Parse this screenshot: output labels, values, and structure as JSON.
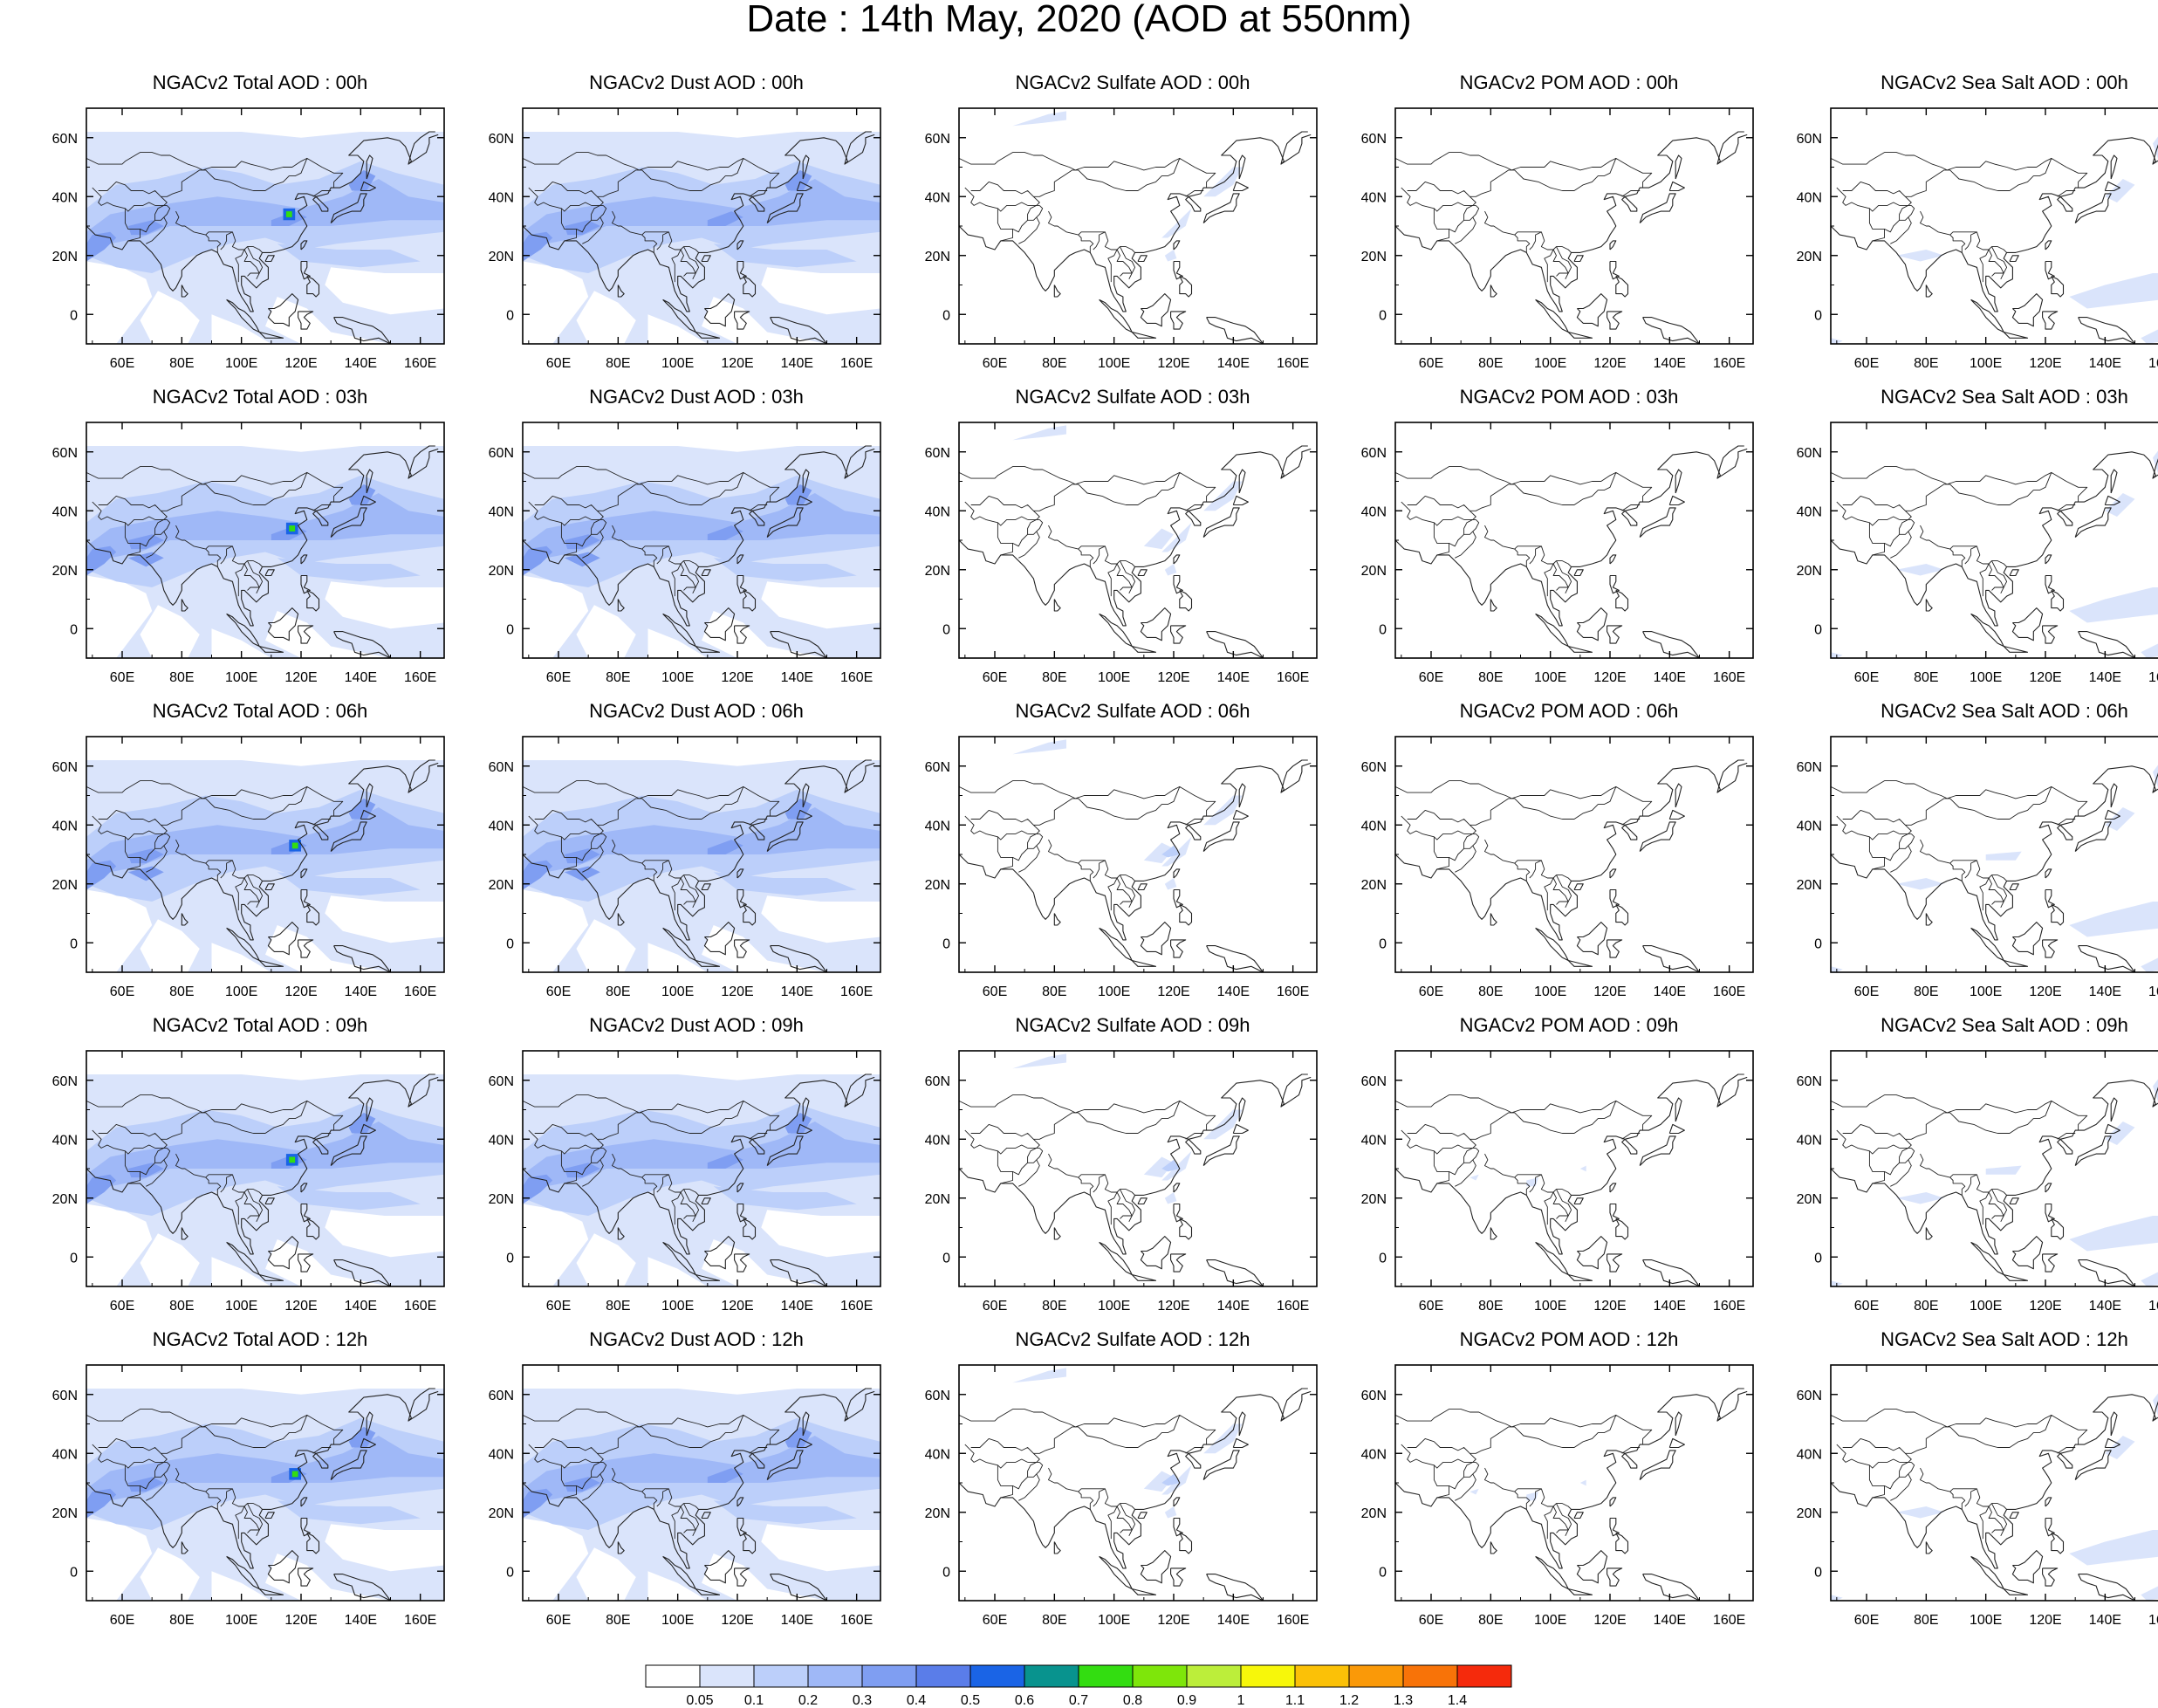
{
  "title": "Date : 14th May, 2020 (AOD at 550nm)",
  "panels": [
    [
      "NGACv2 Total AOD : 00h",
      "NGACv2 Dust AOD : 00h",
      "NGACv2 Sulfate AOD : 00h",
      "NGACv2 POM AOD : 00h",
      "NGACv2 Sea Salt AOD : 00h"
    ],
    [
      "NGACv2 Total AOD : 03h",
      "NGACv2 Dust AOD : 03h",
      "NGACv2 Sulfate AOD : 03h",
      "NGACv2 POM AOD : 03h",
      "NGACv2 Sea Salt AOD : 03h"
    ],
    [
      "NGACv2 Total AOD : 06h",
      "NGACv2 Dust AOD : 06h",
      "NGACv2 Sulfate AOD : 06h",
      "NGACv2 POM AOD : 06h",
      "NGACv2 Sea Salt AOD : 06h"
    ],
    [
      "NGACv2 Total AOD : 09h",
      "NGACv2 Dust AOD : 09h",
      "NGACv2 Sulfate AOD : 09h",
      "NGACv2 POM AOD : 09h",
      "NGACv2 Sea Salt  AOD : 09h"
    ],
    [
      "NGACv2 Total AOD  : 12h",
      "NGACv2 Dust AOD : 12h",
      "NGACv2 Sulfate AOD : 12h",
      "NGACv2 POM  AOD : 12h",
      "NGACv2 Sea Salt  AOD : 12h"
    ]
  ],
  "map": {
    "lon_range": [
      48,
      168
    ],
    "lat_range": [
      -10,
      70
    ],
    "x_ticks": [
      "60E",
      "80E",
      "100E",
      "120E",
      "140E",
      "160E"
    ],
    "x_tick_values": [
      60,
      80,
      100,
      120,
      140,
      160
    ],
    "y_ticks": [
      "60N",
      "40N",
      "20N",
      "0"
    ],
    "y_tick_values": [
      60,
      40,
      20,
      0
    ]
  },
  "colorbar": {
    "labels": [
      "0.05",
      "0.1",
      "0.2",
      "0.3",
      "0.4",
      "0.5",
      "0.6",
      "0.7",
      "0.8",
      "0.9",
      "1",
      "1.1",
      "1.2",
      "1.3",
      "1.4"
    ],
    "colors": [
      "#ffffff",
      "#dae4fb",
      "#bccffa",
      "#9fb8f7",
      "#7f9ef2",
      "#5a7de9",
      "#1a64e6",
      "#08938e",
      "#33dd11",
      "#7ee60a",
      "#bcee3a",
      "#f7f70a",
      "#fbc107",
      "#fa9908",
      "#f87308",
      "#f52a0c"
    ]
  }
}
